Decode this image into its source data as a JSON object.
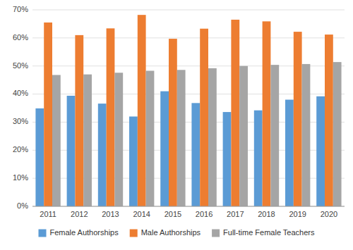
{
  "chart_data": {
    "type": "bar",
    "categories": [
      "2011",
      "2012",
      "2013",
      "2014",
      "2015",
      "2016",
      "2017",
      "2018",
      "2019",
      "2020"
    ],
    "series": [
      {
        "name": "Female Authorships",
        "color": "#5B9BD5",
        "values": [
          0.349,
          0.394,
          0.366,
          0.32,
          0.41,
          0.368,
          0.336,
          0.342,
          0.38,
          0.392
        ]
      },
      {
        "name": "Male Authorships",
        "color": "#ED7D31",
        "values": [
          0.655,
          0.61,
          0.634,
          0.682,
          0.597,
          0.633,
          0.665,
          0.659,
          0.622,
          0.612
        ]
      },
      {
        "name": "Full-time Female Teachers",
        "color": "#A5A5A5",
        "values": [
          0.468,
          0.47,
          0.476,
          0.483,
          0.486,
          0.492,
          0.5,
          0.504,
          0.507,
          0.514
        ]
      }
    ],
    "ylim": [
      0.0,
      0.7
    ],
    "yticks": [
      {
        "value": 0.0,
        "label": "0%"
      },
      {
        "value": 0.1,
        "label": "10%"
      },
      {
        "value": 0.2,
        "label": "20%"
      },
      {
        "value": 0.3,
        "label": "30%"
      },
      {
        "value": 0.4,
        "label": "40%"
      },
      {
        "value": 0.5,
        "label": "50%"
      },
      {
        "value": 0.6,
        "label": "60%"
      },
      {
        "value": 0.7,
        "label": "70%"
      }
    ],
    "grid": true,
    "legend": "bottom"
  }
}
